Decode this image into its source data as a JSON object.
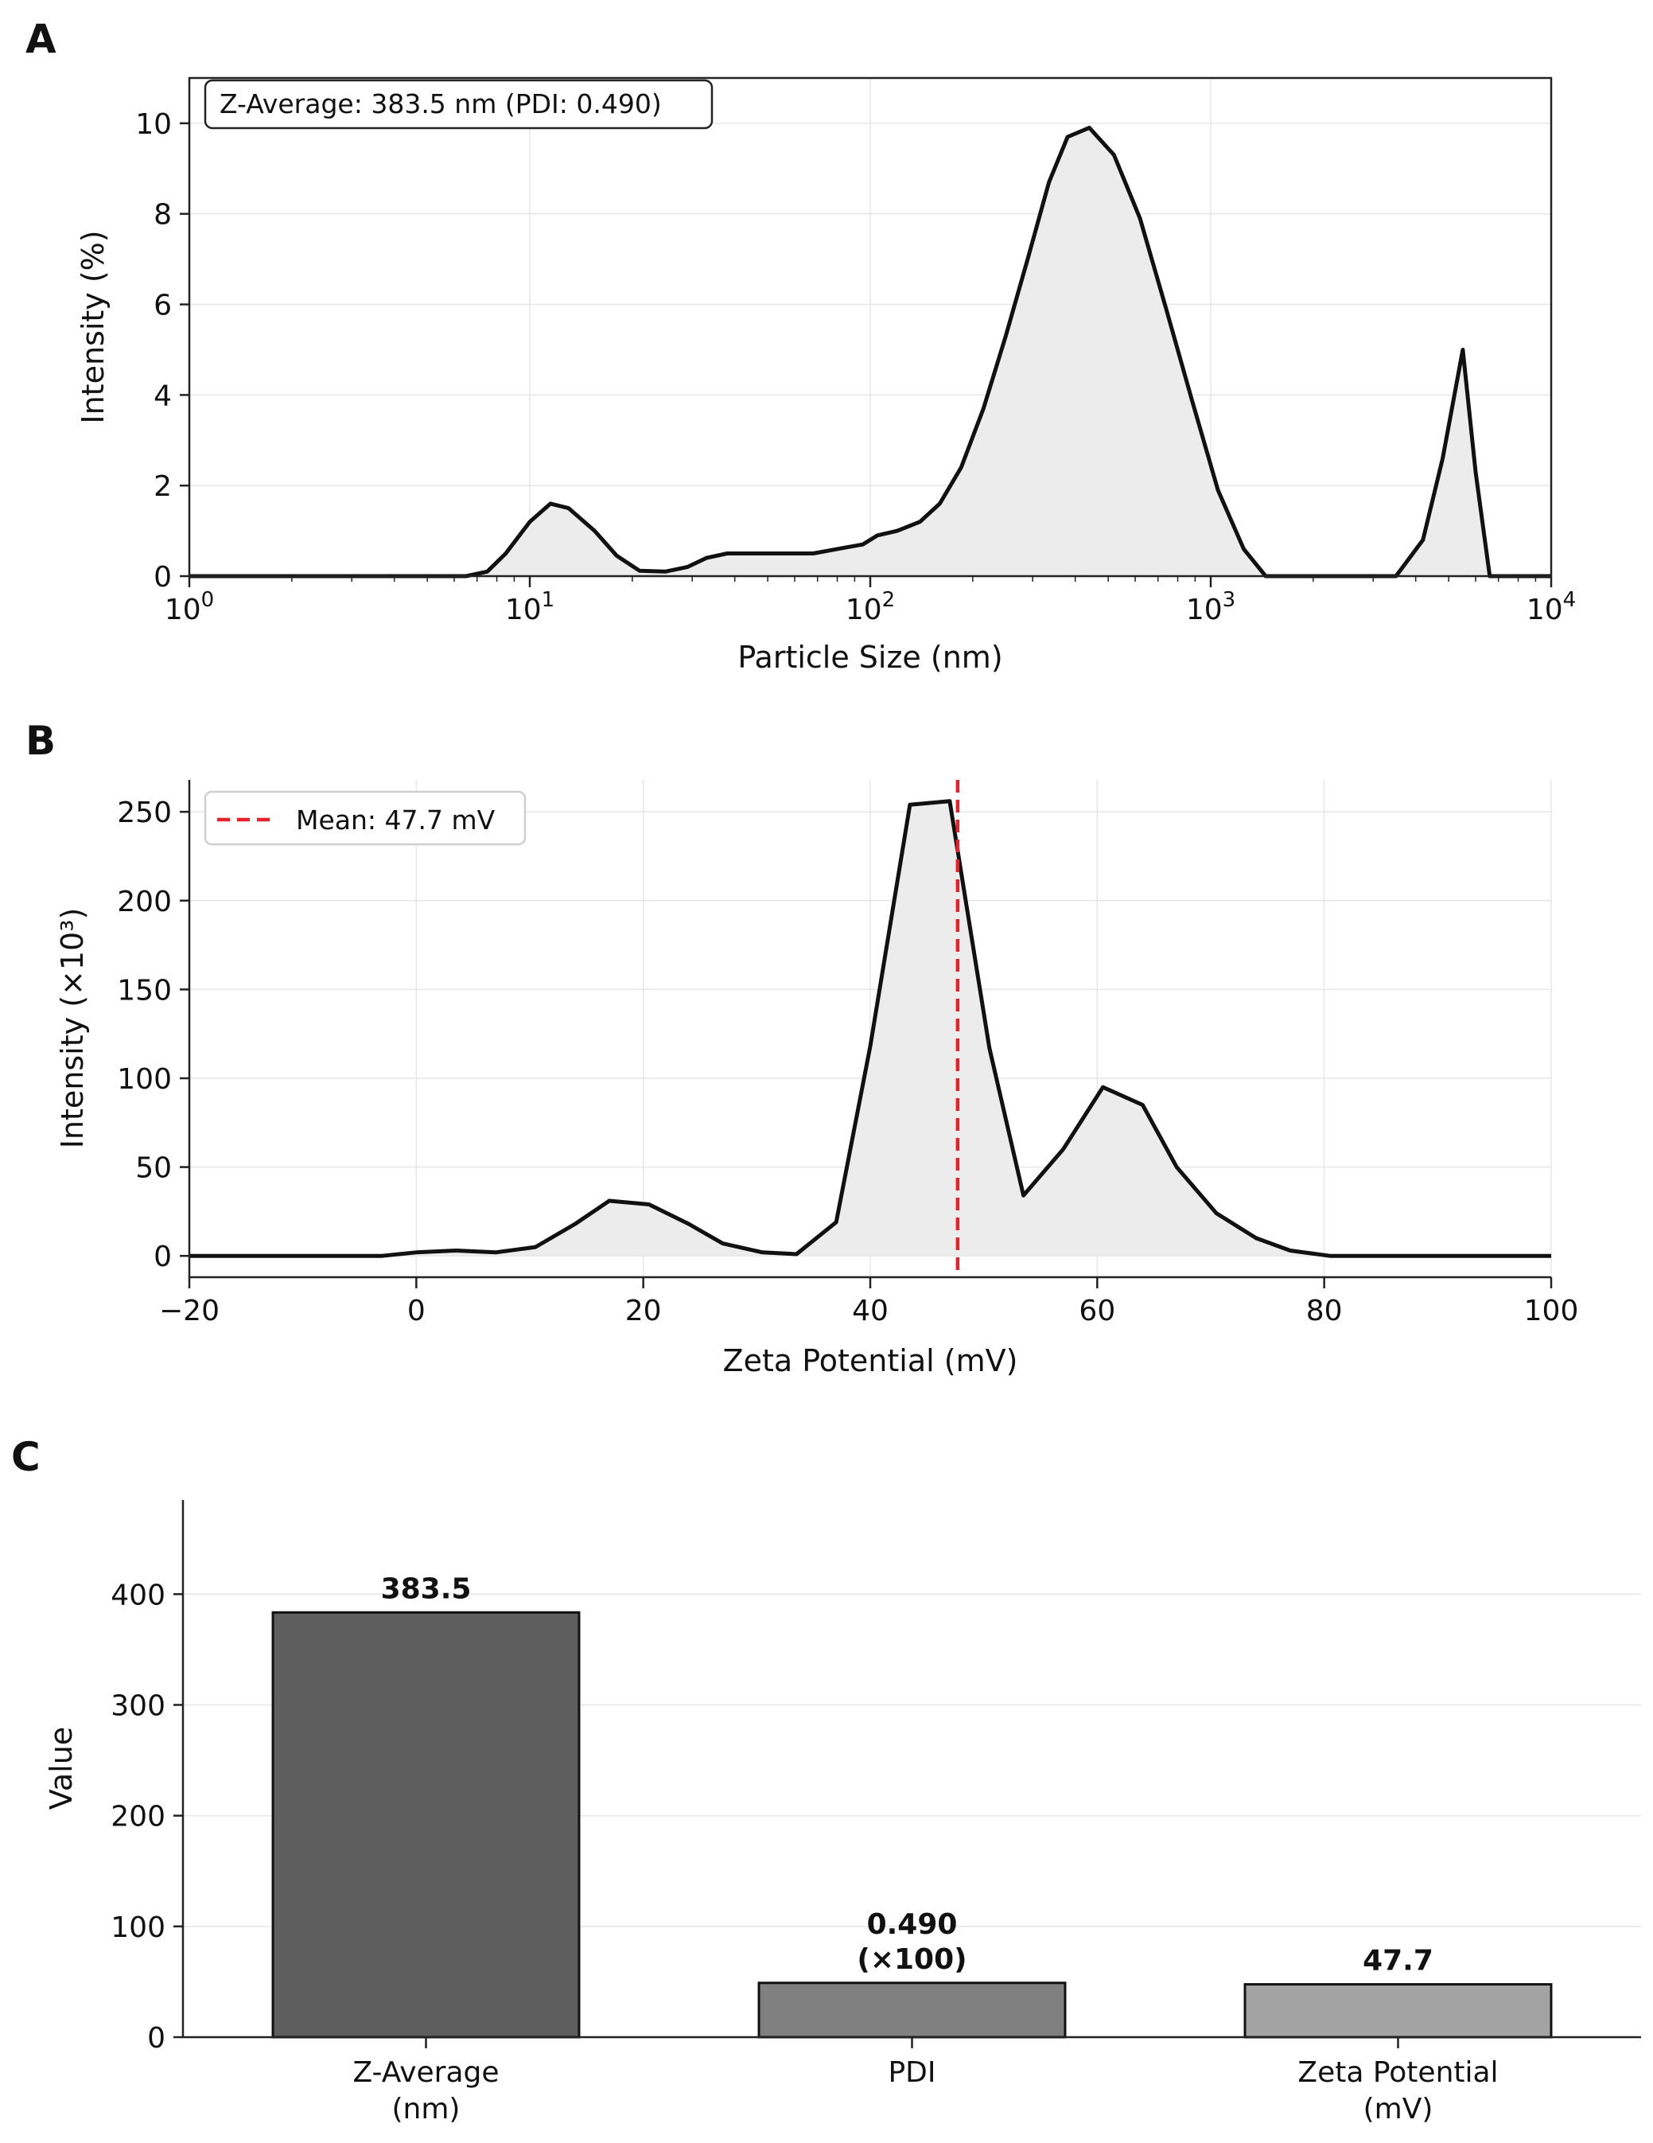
{
  "panels": {
    "a": "A",
    "b": "B",
    "c": "C"
  },
  "chart_data": [
    {
      "type": "area",
      "panel": "A",
      "annotation": "Z-Average: 383.5 nm (PDI: 0.490)",
      "xlabel": "Particle Size (nm)",
      "ylabel": "Intensity (%)",
      "xscale": "log",
      "xlim": [
        1,
        10000
      ],
      "ylim": [
        0,
        11
      ],
      "yticks": [
        0,
        2,
        4,
        6,
        8,
        10
      ],
      "xticks": [
        {
          "value": 1,
          "base": "10",
          "exp": "0"
        },
        {
          "value": 10,
          "base": "10",
          "exp": "1"
        },
        {
          "value": 100,
          "base": "10",
          "exp": "2"
        },
        {
          "value": 1000,
          "base": "10",
          "exp": "3"
        },
        {
          "value": 10000,
          "base": "10",
          "exp": "4"
        }
      ],
      "grid": true,
      "x": [
        1,
        6.5,
        7.5,
        8.5,
        10,
        11.5,
        13,
        15.5,
        18,
        21,
        25,
        29,
        33,
        38,
        45,
        55,
        68,
        80,
        95,
        105,
        120,
        140,
        160,
        185,
        215,
        250,
        290,
        335,
        380,
        440,
        520,
        620,
        740,
        880,
        1050,
        1250,
        1450,
        2000,
        3500,
        4200,
        4800,
        5500,
        6000,
        6600,
        10000
      ],
      "y": [
        0,
        0,
        0.1,
        0.5,
        1.2,
        1.6,
        1.5,
        1.0,
        0.45,
        0.12,
        0.1,
        0.2,
        0.4,
        0.5,
        0.5,
        0.5,
        0.5,
        0.6,
        0.7,
        0.9,
        1.0,
        1.2,
        1.6,
        2.4,
        3.7,
        5.3,
        7.0,
        8.7,
        9.7,
        9.9,
        9.3,
        7.9,
        5.9,
        3.9,
        1.9,
        0.6,
        0,
        0,
        0,
        0.8,
        2.6,
        5.0,
        2.3,
        0,
        0
      ]
    },
    {
      "type": "area",
      "panel": "B",
      "xlabel": "Zeta Potential (mV)",
      "ylabel": "Intensity (×10³)",
      "xlim": [
        -20,
        100
      ],
      "ylim": [
        -12,
        268
      ],
      "xticks": [
        -20,
        0,
        20,
        40,
        60,
        80,
        100
      ],
      "xtick_labels": [
        "−20",
        "0",
        "20",
        "40",
        "60",
        "80",
        "100"
      ],
      "yticks": [
        0,
        50,
        100,
        150,
        200,
        250
      ],
      "grid": true,
      "legend": {
        "label": "Mean: 47.7 mV",
        "position": "top-left"
      },
      "mean_line": {
        "x": 47.7,
        "color": "#e8202a",
        "style": "dashed"
      },
      "x": [
        -20,
        -3,
        0,
        3.5,
        7,
        10.5,
        14,
        17,
        20.5,
        24,
        27,
        30.5,
        33.5,
        37,
        40,
        43.5,
        47,
        50.5,
        53.5,
        57,
        60.5,
        64,
        67,
        70.5,
        74,
        77,
        80.5,
        84,
        100
      ],
      "y": [
        0,
        0,
        2,
        3,
        2,
        5,
        18,
        31,
        29,
        18,
        7,
        2,
        1,
        19,
        118,
        254,
        256,
        117,
        34,
        60,
        95,
        85,
        50,
        24,
        10,
        3,
        0,
        0,
        0
      ]
    },
    {
      "type": "bar",
      "panel": "C",
      "ylabel": "Value",
      "ylim": [
        0,
        485
      ],
      "yticks": [
        0,
        100,
        200,
        300,
        400
      ],
      "grid": true,
      "categories": [
        {
          "line1": "Z-Average",
          "line2": "(nm)"
        },
        {
          "line1": "PDI",
          "line2": ""
        },
        {
          "line1": "Zeta Potential",
          "line2": "(mV)"
        }
      ],
      "values": [
        383.5,
        49.0,
        47.7
      ],
      "colors": [
        "#5e5e5e",
        "#808080",
        "#a3a3a3"
      ],
      "value_labels": [
        {
          "line1": "383.5",
          "line2": ""
        },
        {
          "line1": "0.490",
          "line2": "(×100)"
        },
        {
          "line1": "47.7",
          "line2": ""
        }
      ]
    }
  ]
}
